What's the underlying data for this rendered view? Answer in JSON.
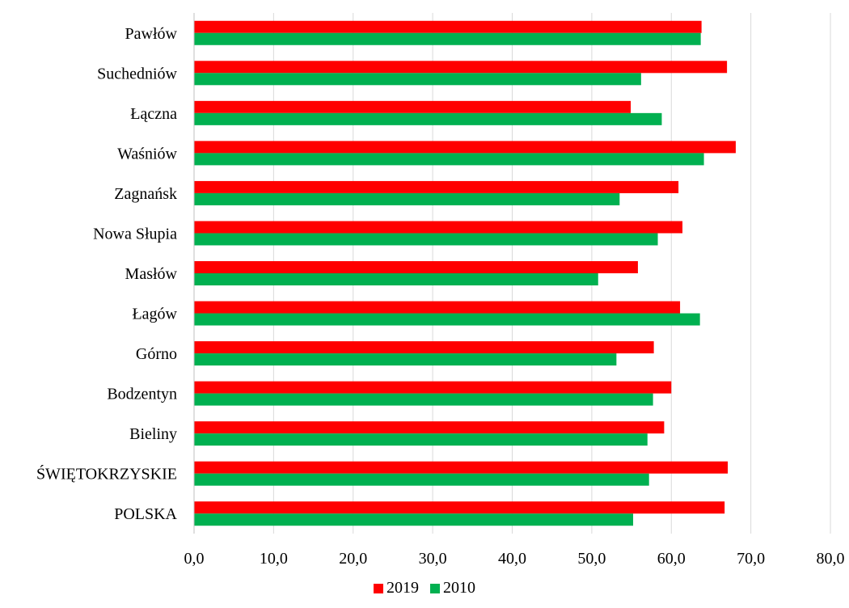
{
  "chart_data": {
    "type": "bar",
    "orientation": "horizontal",
    "categories": [
      "Pawłów",
      "Suchedniów",
      "Łączna",
      "Waśniów",
      "Zagnańsk",
      "Nowa Słupia",
      "Masłów",
      "Łagów",
      "Górno",
      "Bodzentyn",
      "Bieliny",
      "ŚWIĘTOKRZYSKIE",
      "POLSKA"
    ],
    "series": [
      {
        "name": "2019",
        "color": "#ff0000",
        "values": [
          63.8,
          67.0,
          54.9,
          68.1,
          60.9,
          61.4,
          55.8,
          61.1,
          57.8,
          60.0,
          59.1,
          67.1,
          66.7
        ]
      },
      {
        "name": "2010",
        "color": "#00b050",
        "values": [
          63.7,
          56.2,
          58.8,
          64.1,
          53.5,
          58.3,
          50.8,
          63.6,
          53.1,
          57.7,
          57.0,
          57.2,
          55.2
        ]
      }
    ],
    "xlim": [
      0,
      80
    ],
    "xticks": [
      0,
      10,
      20,
      30,
      40,
      50,
      60,
      70,
      80
    ],
    "xtick_labels": [
      "0,0",
      "10,0",
      "20,0",
      "30,0",
      "40,0",
      "50,0",
      "60,0",
      "70,0",
      "80,0"
    ],
    "grid": "vertical",
    "legend_position": "bottom",
    "grid_color": "#d9d9d9",
    "axis_color": "#bfbfbf"
  }
}
